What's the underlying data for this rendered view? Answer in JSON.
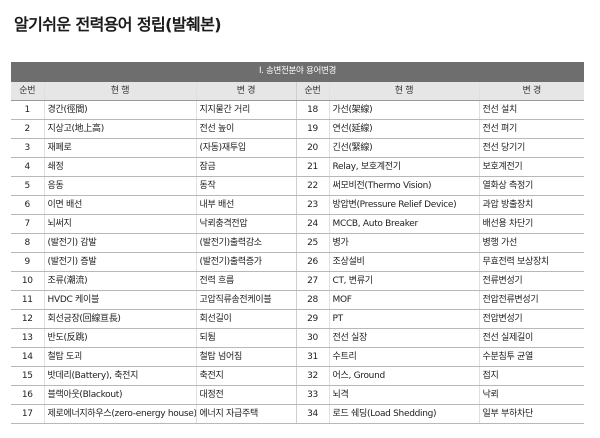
{
  "title": "알기쉬운 전력용어 정립(발췌본)",
  "table": {
    "section_label": "Ⅰ. 송변전분야 용어변경",
    "headers": {
      "no": "순번",
      "current": "현 행",
      "change": "변 경"
    },
    "rows": [
      {
        "left": {
          "no": "1",
          "current": "경간(徑間)",
          "change": "지지물간 거리"
        },
        "right": {
          "no": "18",
          "current": "가선(架線)",
          "change": "전선 설치"
        }
      },
      {
        "left": {
          "no": "2",
          "current": "지상고(地上高)",
          "change": "전선 높이"
        },
        "right": {
          "no": "19",
          "current": "연선(延線)",
          "change": "전선 펴기"
        }
      },
      {
        "left": {
          "no": "3",
          "current": "재폐로",
          "change": "(자동)재투입"
        },
        "right": {
          "no": "20",
          "current": "긴선(緊線)",
          "change": "전선 당기기"
        }
      },
      {
        "left": {
          "no": "4",
          "current": "쇄정",
          "change": "잠금"
        },
        "right": {
          "no": "21",
          "current": "Relay, 보호계전기",
          "change": "보호계전기"
        }
      },
      {
        "left": {
          "no": "5",
          "current": "응동",
          "change": "동작"
        },
        "right": {
          "no": "22",
          "current": "써모비전(Thermo Vision)",
          "change": "열화상 측정기"
        }
      },
      {
        "left": {
          "no": "6",
          "current": "이면 배선",
          "change": "내부 배선"
        },
        "right": {
          "no": "23",
          "current": "방압변(Pressure Relief Device)",
          "change": "과압 방출장치"
        }
      },
      {
        "left": {
          "no": "7",
          "current": "뇌써지",
          "change": "낙뢰충격전압"
        },
        "right": {
          "no": "24",
          "current": "MCCB, Auto Breaker",
          "change": "배선용 차단기"
        }
      },
      {
        "left": {
          "no": "8",
          "current": "(발전기) 감발",
          "change": "(발전기)출력감소"
        },
        "right": {
          "no": "25",
          "current": "병가",
          "change": "병행 가선"
        }
      },
      {
        "left": {
          "no": "9",
          "current": "(발전기) 증발",
          "change": "(발전기)출력증가"
        },
        "right": {
          "no": "26",
          "current": "조상설비",
          "change": "무효전력 보상장치"
        }
      },
      {
        "left": {
          "no": "10",
          "current": "조류(潮流)",
          "change": "전력 흐름"
        },
        "right": {
          "no": "27",
          "current": "CT, 변류기",
          "change": "전류변성기"
        }
      },
      {
        "left": {
          "no": "11",
          "current": "HVDC 케이블",
          "change": "고압직류송전케이블"
        },
        "right": {
          "no": "28",
          "current": "MOF",
          "change": "전압전류변성기"
        }
      },
      {
        "left": {
          "no": "12",
          "current": "회선긍장(回線亘長)",
          "change": "회선길이"
        },
        "right": {
          "no": "29",
          "current": "PT",
          "change": "전압변성기"
        }
      },
      {
        "left": {
          "no": "13",
          "current": "반도(反跳)",
          "change": "되튐"
        },
        "right": {
          "no": "30",
          "current": "전선 실장",
          "change": "전선 실제길이"
        }
      },
      {
        "left": {
          "no": "14",
          "current": "철탑 도괴",
          "change": "철탑 넘어짐"
        },
        "right": {
          "no": "31",
          "current": "수트리",
          "change": "수분침투 균열"
        }
      },
      {
        "left": {
          "no": "15",
          "current": "밧데리(Battery), 축전지",
          "change": "축전지"
        },
        "right": {
          "no": "32",
          "current": "어스, Ground",
          "change": "접지"
        }
      },
      {
        "left": {
          "no": "16",
          "current": "블랙아웃(Blackout)",
          "change": "대정전"
        },
        "right": {
          "no": "33",
          "current": "뇌격",
          "change": "낙뢰"
        }
      },
      {
        "left": {
          "no": "17",
          "current": "제로에너지하우스(zero-energy house)",
          "change": "에너지 자급주택"
        },
        "right": {
          "no": "34",
          "current": "로드 쉐딩(Load Shedding)",
          "change": "일부 부하차단"
        }
      }
    ]
  }
}
